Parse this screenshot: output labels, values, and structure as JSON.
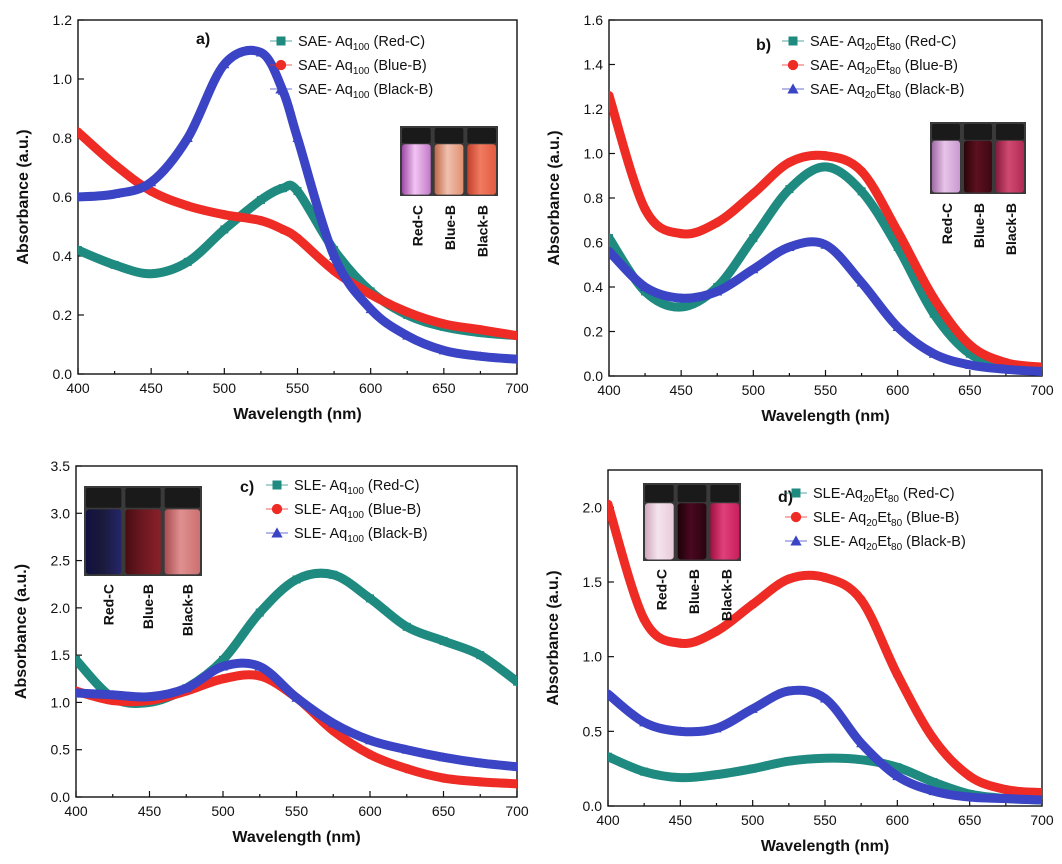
{
  "colors": {
    "Red-C": "#1f8a80",
    "Blue-B": "#ee2b24",
    "Black-B": "#3a44c4"
  },
  "chart_data": [
    {
      "type": "line",
      "panel_label": "a)",
      "xlabel": "Wavelength (nm)",
      "ylabel": "Absorbance (a.u.)",
      "xlim": [
        400,
        700
      ],
      "ylim": [
        0,
        1.2
      ],
      "xticks": [
        "400",
        "450",
        "500",
        "550",
        "600",
        "650",
        "700"
      ],
      "yticks": [
        "0.0",
        "0.2",
        "0.4",
        "0.6",
        "0.8",
        "1.0",
        "1.2"
      ],
      "legend_position": "top-right",
      "x": [
        400,
        425,
        450,
        475,
        500,
        525,
        540,
        550,
        575,
        600,
        625,
        650,
        675,
        700
      ],
      "series": [
        {
          "key": "Red-C",
          "marker": "square",
          "name_parts": [
            "SAE- Aq",
            "100",
            "",
            "",
            " (Red-C)"
          ],
          "values": [
            0.42,
            0.37,
            0.34,
            0.38,
            0.49,
            0.59,
            0.63,
            0.62,
            0.42,
            0.28,
            0.2,
            0.16,
            0.14,
            0.13
          ]
        },
        {
          "key": "Blue-B",
          "marker": "circle",
          "name_parts": [
            "SAE- Aq",
            "100",
            "",
            "",
            " (Blue-B)"
          ],
          "values": [
            0.82,
            0.71,
            0.62,
            0.57,
            0.54,
            0.52,
            0.49,
            0.46,
            0.35,
            0.27,
            0.21,
            0.17,
            0.15,
            0.13
          ]
        },
        {
          "key": "Black-B",
          "marker": "triangle",
          "name_parts": [
            "SAE- Aq",
            "100",
            "",
            "",
            " (Black-B)"
          ],
          "values": [
            0.6,
            0.61,
            0.65,
            0.8,
            1.05,
            1.09,
            0.96,
            0.8,
            0.4,
            0.22,
            0.13,
            0.08,
            0.06,
            0.05
          ]
        }
      ],
      "vial_labels": [
        "Red-C",
        "Blue-B",
        "Black-B"
      ]
    },
    {
      "type": "line",
      "panel_label": "b)",
      "xlabel": "Wavelength (nm)",
      "ylabel": "Absorbance (a.u.)",
      "xlim": [
        400,
        700
      ],
      "ylim": [
        0,
        1.6
      ],
      "xticks": [
        "400",
        "450",
        "500",
        "550",
        "600",
        "650",
        "700"
      ],
      "yticks": [
        "0.0",
        "0.2",
        "0.4",
        "0.6",
        "0.8",
        "1.0",
        "1.2",
        "1.4",
        "1.6"
      ],
      "legend_position": "top-right",
      "x": [
        400,
        425,
        450,
        475,
        500,
        525,
        550,
        575,
        600,
        625,
        650,
        675,
        700
      ],
      "series": [
        {
          "key": "Red-C",
          "marker": "square",
          "name_parts": [
            "SAE- Aq",
            "20",
            "Et",
            "80",
            " (Red-C)"
          ],
          "values": [
            0.62,
            0.38,
            0.31,
            0.4,
            0.62,
            0.84,
            0.94,
            0.83,
            0.58,
            0.28,
            0.1,
            0.05,
            0.03
          ]
        },
        {
          "key": "Blue-B",
          "marker": "circle",
          "name_parts": [
            "SAE- Aq",
            "20",
            "Et",
            "80",
            " (Blue-B)"
          ],
          "values": [
            1.26,
            0.75,
            0.64,
            0.69,
            0.82,
            0.96,
            0.99,
            0.92,
            0.65,
            0.35,
            0.14,
            0.06,
            0.04
          ]
        },
        {
          "key": "Black-B",
          "marker": "triangle",
          "name_parts": [
            "SAE- Aq",
            "20",
            "Et",
            "80",
            " (Black-B)"
          ],
          "values": [
            0.56,
            0.4,
            0.35,
            0.38,
            0.48,
            0.58,
            0.59,
            0.42,
            0.22,
            0.1,
            0.05,
            0.03,
            0.02
          ]
        }
      ],
      "vial_labels": [
        "Red-C",
        "Blue-B",
        "Black-B"
      ]
    },
    {
      "type": "line",
      "panel_label": "c)",
      "xlabel": "Wavelength (nm)",
      "ylabel": "Absorbance (a.u.)",
      "xlim": [
        400,
        700
      ],
      "ylim": [
        0,
        3.5
      ],
      "xticks": [
        "400",
        "450",
        "500",
        "550",
        "600",
        "650",
        "700"
      ],
      "yticks": [
        "0.0",
        "0.5",
        "1.0",
        "1.5",
        "2.0",
        "2.5",
        "3.0",
        "3.5"
      ],
      "legend_position": "top-right",
      "x": [
        400,
        425,
        450,
        475,
        500,
        525,
        550,
        575,
        600,
        625,
        650,
        675,
        700
      ],
      "series": [
        {
          "key": "Red-C",
          "marker": "square",
          "name_parts": [
            "SLE- Aq",
            "100",
            "",
            "",
            " (Red-C)"
          ],
          "values": [
            1.45,
            1.05,
            1.0,
            1.15,
            1.45,
            1.95,
            2.3,
            2.35,
            2.1,
            1.8,
            1.65,
            1.5,
            1.22
          ]
        },
        {
          "key": "Blue-B",
          "marker": "circle",
          "name_parts": [
            "SLE- Aq",
            "100",
            "",
            "",
            " (Blue-B)"
          ],
          "values": [
            1.12,
            1.02,
            1.02,
            1.12,
            1.25,
            1.28,
            1.05,
            0.7,
            0.45,
            0.3,
            0.2,
            0.16,
            0.14
          ]
        },
        {
          "key": "Black-B",
          "marker": "triangle",
          "name_parts": [
            "SLE- Aq",
            "100",
            "",
            "",
            " (Black-B)"
          ],
          "values": [
            1.1,
            1.08,
            1.06,
            1.15,
            1.38,
            1.38,
            1.05,
            0.78,
            0.6,
            0.5,
            0.42,
            0.36,
            0.32
          ]
        }
      ],
      "vial_labels": [
        "Red-C",
        "Blue-B",
        "Black-B"
      ]
    },
    {
      "type": "line",
      "panel_label": "d)",
      "xlabel": "Wavelength (nm)",
      "ylabel": "Absorbance (a.u.)",
      "xlim": [
        400,
        700
      ],
      "ylim": [
        0,
        2.25
      ],
      "xticks": [
        "400",
        "450",
        "500",
        "550",
        "600",
        "650",
        "700"
      ],
      "yticks": [
        "0.0",
        "0.5",
        "1.0",
        "1.5",
        "2.0"
      ],
      "legend_position": "top-right",
      "x": [
        400,
        425,
        450,
        475,
        500,
        525,
        550,
        575,
        600,
        625,
        650,
        675,
        700
      ],
      "series": [
        {
          "key": "Red-C",
          "marker": "square",
          "name_parts": [
            "SLE-Aq",
            "20",
            "Et",
            "80",
            " (Red-C)"
          ],
          "values": [
            0.33,
            0.23,
            0.19,
            0.21,
            0.25,
            0.3,
            0.32,
            0.31,
            0.26,
            0.16,
            0.08,
            0.05,
            0.04
          ]
        },
        {
          "key": "Blue-B",
          "marker": "circle",
          "name_parts": [
            "SLE- Aq",
            "20",
            "Et",
            "80",
            " (Blue-B)"
          ],
          "values": [
            2.02,
            1.25,
            1.09,
            1.17,
            1.35,
            1.52,
            1.53,
            1.38,
            0.88,
            0.45,
            0.2,
            0.11,
            0.09
          ]
        },
        {
          "key": "Black-B",
          "marker": "triangle",
          "name_parts": [
            "SLE- Aq",
            "20",
            "Et",
            "80",
            " (Black-B)"
          ],
          "values": [
            0.75,
            0.56,
            0.5,
            0.52,
            0.65,
            0.77,
            0.72,
            0.42,
            0.2,
            0.1,
            0.06,
            0.05,
            0.04
          ]
        }
      ],
      "vial_labels": [
        "Red-C",
        "Blue-B",
        "Black-B"
      ]
    }
  ]
}
